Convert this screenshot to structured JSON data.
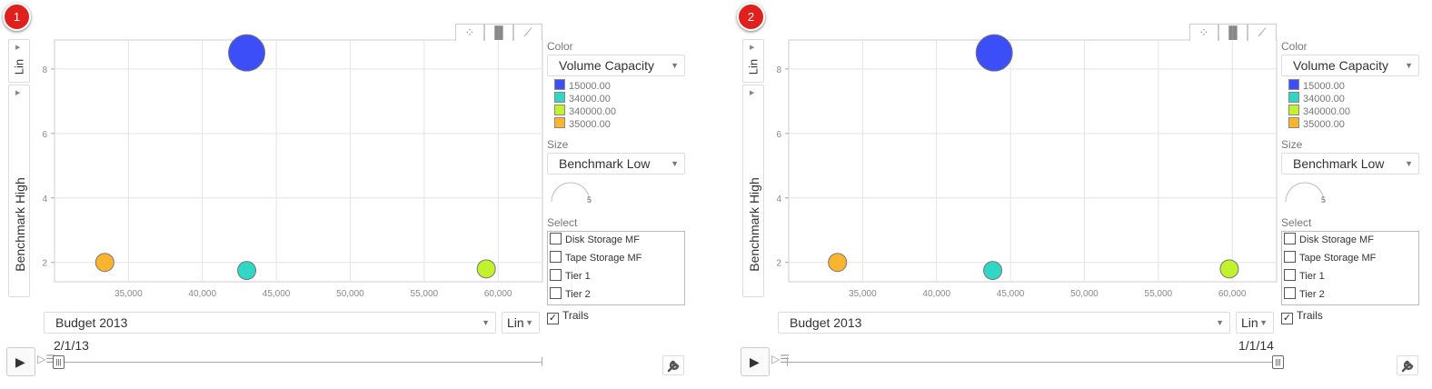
{
  "panels": [
    {
      "badge": "1",
      "date": "2/1/13",
      "slider_position": 0.0,
      "controls": {
        "y_scale": "Lin",
        "y_label": "Benchmark High",
        "x_label": "Budget 2013",
        "x_scale": "Lin",
        "color_label": "Color",
        "color_value": "Volume Capacity",
        "size_label": "Size",
        "size_value": "Benchmark Low",
        "size_indicator": "5",
        "select_label": "Select",
        "select_items": [
          {
            "label": "Disk Storage MF",
            "checked": false
          },
          {
            "label": "Tape Storage MF",
            "checked": false
          },
          {
            "label": "Tier 1",
            "checked": false
          },
          {
            "label": "Tier 2",
            "checked": false
          }
        ],
        "trails_label": "Trails",
        "trails_checked": true
      },
      "legend": [
        {
          "label": "15000.00",
          "color": "#3c4ef8"
        },
        {
          "label": "34000.00",
          "color": "#30d7c4"
        },
        {
          "label": "340000.00",
          "color": "#c1f22b"
        },
        {
          "label": "35000.00",
          "color": "#fbb42d"
        }
      ]
    },
    {
      "badge": "2",
      "date": "1/1/14",
      "slider_position": 1.0,
      "controls": {
        "y_scale": "Lin",
        "y_label": "Benchmark High",
        "x_label": "Budget 2013",
        "x_scale": "Lin",
        "color_label": "Color",
        "color_value": "Volume Capacity",
        "size_label": "Size",
        "size_value": "Benchmark Low",
        "size_indicator": "5",
        "select_label": "Select",
        "select_items": [
          {
            "label": "Disk Storage MF",
            "checked": false
          },
          {
            "label": "Tape Storage MF",
            "checked": false
          },
          {
            "label": "Tier 1",
            "checked": false
          },
          {
            "label": "Tier 2",
            "checked": false
          }
        ],
        "trails_label": "Trails",
        "trails_checked": true
      },
      "legend": [
        {
          "label": "15000.00",
          "color": "#3c4ef8"
        },
        {
          "label": "34000.00",
          "color": "#30d7c4"
        },
        {
          "label": "340000.00",
          "color": "#c1f22b"
        },
        {
          "label": "35000.00",
          "color": "#fbb42d"
        }
      ]
    }
  ],
  "icons": {
    "chart_types": [
      "bubble-chart-icon",
      "bar-chart-icon",
      "line-chart-icon"
    ],
    "play": "play-icon",
    "speed": "speed-icon",
    "settings": "wrench-icon"
  },
  "chart_data": [
    {
      "type": "scatter",
      "xlabel": "Budget 2013",
      "ylabel": "Benchmark High",
      "xlim": [
        30000,
        63000
      ],
      "ylim": [
        1.4,
        8.9
      ],
      "x_ticks": [
        "35,000",
        "40,000",
        "45,000",
        "50,000",
        "55,000",
        "60,000"
      ],
      "y_ticks": [
        "2",
        "4",
        "6",
        "8"
      ],
      "grid": true,
      "points": [
        {
          "x": 43000,
          "y": 8.5,
          "color": "#3c4ef8",
          "size": "large"
        },
        {
          "x": 33400,
          "y": 2.0,
          "color": "#fbb42d",
          "size": "small"
        },
        {
          "x": 43000,
          "y": 1.75,
          "color": "#30d7c4",
          "size": "small"
        },
        {
          "x": 59200,
          "y": 1.8,
          "color": "#c1f22b",
          "size": "small"
        }
      ]
    },
    {
      "type": "scatter",
      "xlabel": "Budget 2013",
      "ylabel": "Benchmark High",
      "xlim": [
        30000,
        63000
      ],
      "ylim": [
        1.4,
        8.9
      ],
      "x_ticks": [
        "35,000",
        "40,000",
        "45,000",
        "50,000",
        "55,000",
        "60,000"
      ],
      "y_ticks": [
        "2",
        "4",
        "6",
        "8"
      ],
      "grid": true,
      "points": [
        {
          "x": 43900,
          "y": 8.5,
          "color": "#3c4ef8",
          "size": "large"
        },
        {
          "x": 33300,
          "y": 2.0,
          "color": "#fbb42d",
          "size": "small"
        },
        {
          "x": 43800,
          "y": 1.75,
          "color": "#30d7c4",
          "size": "small"
        },
        {
          "x": 59800,
          "y": 1.8,
          "color": "#c1f22b",
          "size": "small"
        }
      ]
    }
  ]
}
